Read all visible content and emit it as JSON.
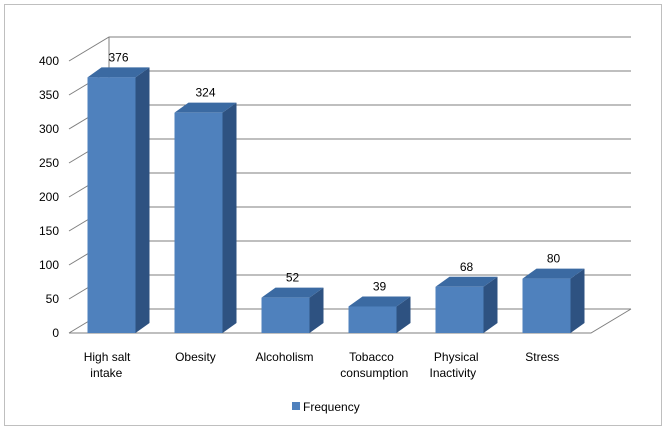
{
  "chart_data": {
    "type": "bar",
    "style": "3d-column",
    "categories": [
      [
        "High salt",
        "intake"
      ],
      [
        "Obesity"
      ],
      [
        "Alcoholism"
      ],
      [
        "Tobacco",
        "consumption"
      ],
      [
        "Physical",
        "Inactivity"
      ],
      [
        "Stress"
      ]
    ],
    "series": [
      {
        "name": "Frequency",
        "values": [
          376,
          324,
          52,
          39,
          68,
          80
        ]
      }
    ],
    "ylim": [
      0,
      400
    ],
    "yticks": [
      0,
      50,
      100,
      150,
      200,
      250,
      300,
      350,
      400
    ],
    "grid": true,
    "legend_position": "bottom",
    "colors": {
      "bar_front": "#4f81bd",
      "bar_side": "#2e5281",
      "bar_top": "#3b6aa2",
      "grid": "#7f7f7f",
      "frame": "#bfbfbf"
    }
  }
}
